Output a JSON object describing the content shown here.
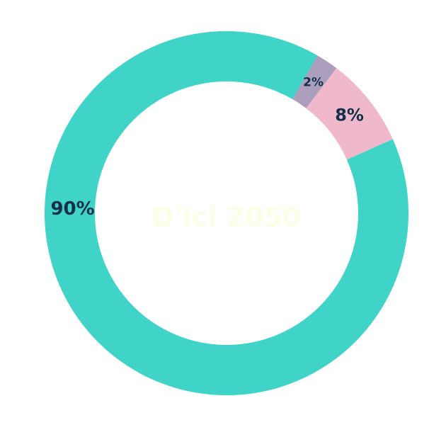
{
  "chart_data": {
    "type": "pie",
    "style": "donut",
    "title": "",
    "center_label": "D'ici 2050",
    "start_angle_deg": 0,
    "direction": "counterclockwise",
    "slices": [
      {
        "label": "90%",
        "value": 90,
        "color": "#3fd4c7"
      },
      {
        "label": "2%",
        "value": 2,
        "color": "#ab9fbd"
      },
      {
        "label": "8%",
        "value": 8,
        "color": "#f0b9cb"
      }
    ],
    "label_color": "#12304a",
    "legend": "none"
  }
}
